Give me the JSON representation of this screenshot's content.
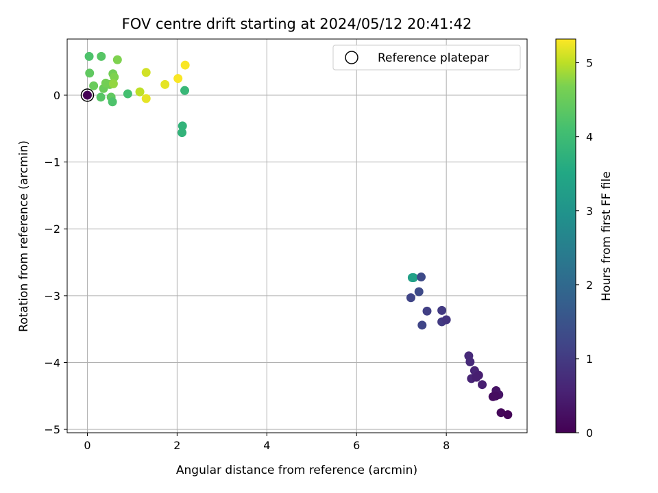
{
  "chart_data": {
    "type": "scatter",
    "title": "FOV centre drift starting at 2024/05/12 20:41:42",
    "xlabel": "Angular distance from reference (arcmin)",
    "ylabel": "Rotation from reference (arcmin)",
    "xlim": [
      -0.45,
      9.8
    ],
    "ylim": [
      -5.05,
      0.84
    ],
    "xticks": [
      0,
      2,
      4,
      6,
      8
    ],
    "yticks": [
      0,
      -1,
      -2,
      -3,
      -4,
      -5
    ],
    "xtick_labels": [
      "0",
      "2",
      "4",
      "6",
      "8"
    ],
    "ytick_labels": [
      "0",
      "−1",
      "−2",
      "−3",
      "−4",
      "−5"
    ],
    "grid": true,
    "legend": {
      "position": "top-right",
      "entries": [
        "Reference platepar"
      ]
    },
    "reference_point": {
      "x": 0,
      "y": 0
    },
    "colorbar": {
      "label": "Hours from first FF file",
      "range": [
        0,
        5.32
      ],
      "ticks": [
        0,
        1,
        2,
        3,
        4,
        5
      ],
      "tick_labels": [
        "0",
        "1",
        "2",
        "3",
        "4",
        "5"
      ],
      "colormap": "viridis"
    },
    "points": [
      {
        "x": 0.0,
        "y": 0.0,
        "c": 0.0
      },
      {
        "x": 0.04,
        "y": 0.58,
        "c": 4.2
      },
      {
        "x": 0.31,
        "y": 0.58,
        "c": 4.3
      },
      {
        "x": 0.05,
        "y": 0.33,
        "c": 4.4
      },
      {
        "x": 0.67,
        "y": 0.53,
        "c": 4.7
      },
      {
        "x": 0.57,
        "y": 0.32,
        "c": 4.6
      },
      {
        "x": 0.6,
        "y": 0.27,
        "c": 4.7
      },
      {
        "x": 0.14,
        "y": 0.14,
        "c": 4.5
      },
      {
        "x": 0.36,
        "y": 0.1,
        "c": 4.5
      },
      {
        "x": 0.41,
        "y": 0.18,
        "c": 4.6
      },
      {
        "x": 0.5,
        "y": 0.16,
        "c": 4.6
      },
      {
        "x": 0.58,
        "y": 0.17,
        "c": 4.8
      },
      {
        "x": 0.3,
        "y": -0.03,
        "c": 4.3
      },
      {
        "x": 0.53,
        "y": -0.03,
        "c": 4.4
      },
      {
        "x": 0.56,
        "y": -0.1,
        "c": 4.2
      },
      {
        "x": 0.9,
        "y": 0.02,
        "c": 4.1
      },
      {
        "x": 1.17,
        "y": 0.05,
        "c": 5.0
      },
      {
        "x": 1.31,
        "y": -0.05,
        "c": 5.2
      },
      {
        "x": 1.31,
        "y": 0.34,
        "c": 5.1
      },
      {
        "x": 1.73,
        "y": 0.16,
        "c": 5.2
      },
      {
        "x": 2.02,
        "y": 0.25,
        "c": 5.3
      },
      {
        "x": 2.18,
        "y": 0.45,
        "c": 5.3
      },
      {
        "x": 2.17,
        "y": 0.07,
        "c": 3.9
      },
      {
        "x": 2.12,
        "y": -0.46,
        "c": 3.8
      },
      {
        "x": 2.11,
        "y": -0.56,
        "c": 3.8
      },
      {
        "x": 7.24,
        "y": -2.73,
        "c": 3.3
      },
      {
        "x": 7.27,
        "y": -2.73,
        "c": 3.3
      },
      {
        "x": 7.44,
        "y": -2.72,
        "c": 1.3
      },
      {
        "x": 7.39,
        "y": -2.94,
        "c": 1.3
      },
      {
        "x": 7.21,
        "y": -3.03,
        "c": 1.2
      },
      {
        "x": 7.57,
        "y": -3.23,
        "c": 1.1
      },
      {
        "x": 7.46,
        "y": -3.44,
        "c": 1.2
      },
      {
        "x": 7.9,
        "y": -3.22,
        "c": 1.0
      },
      {
        "x": 7.9,
        "y": -3.39,
        "c": 1.0
      },
      {
        "x": 8.0,
        "y": -3.36,
        "c": 0.9
      },
      {
        "x": 8.5,
        "y": -3.9,
        "c": 0.7
      },
      {
        "x": 8.53,
        "y": -3.99,
        "c": 0.7
      },
      {
        "x": 8.63,
        "y": -4.12,
        "c": 0.6
      },
      {
        "x": 8.72,
        "y": -4.19,
        "c": 0.5
      },
      {
        "x": 8.56,
        "y": -4.24,
        "c": 0.6
      },
      {
        "x": 8.67,
        "y": -4.22,
        "c": 0.5
      },
      {
        "x": 8.8,
        "y": -4.33,
        "c": 0.5
      },
      {
        "x": 9.11,
        "y": -4.42,
        "c": 0.3
      },
      {
        "x": 9.17,
        "y": -4.48,
        "c": 0.3
      },
      {
        "x": 9.04,
        "y": -4.51,
        "c": 0.2
      },
      {
        "x": 9.1,
        "y": -4.5,
        "c": 0.2
      },
      {
        "x": 9.22,
        "y": -4.75,
        "c": 0.1
      },
      {
        "x": 9.37,
        "y": -4.78,
        "c": 0.05
      }
    ]
  }
}
